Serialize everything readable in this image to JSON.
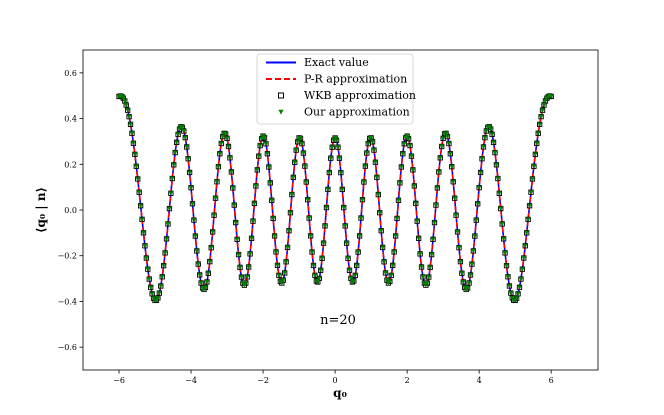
{
  "chart_data": {
    "type": "line",
    "xlabel": "q₀",
    "ylabel": "⟨q₀ | n⟩",
    "xlim": [
      -7,
      7.3
    ],
    "ylim": [
      -0.7,
      0.7
    ],
    "xticks": [
      -6,
      -4,
      -2,
      0,
      2,
      4,
      6
    ],
    "yticks": [
      -0.6,
      -0.4,
      -0.2,
      0.0,
      0.2,
      0.4,
      0.6
    ],
    "annotation": "n=20",
    "legend_position": "top-center",
    "grid": false,
    "function": "hermite_function",
    "n": 20,
    "x_range": [
      -6,
      6
    ],
    "series": [
      {
        "name": "Exact value",
        "style": "solid-line",
        "color": "#0000ff"
      },
      {
        "name": "P-R approximation",
        "style": "dashed-line",
        "color": "#ff0000"
      },
      {
        "name": "WKB approximation",
        "style": "open-square-markers",
        "color": "#000000"
      },
      {
        "name": "Our approximation",
        "style": "triangle-down-markers",
        "color": "#008000"
      }
    ]
  }
}
